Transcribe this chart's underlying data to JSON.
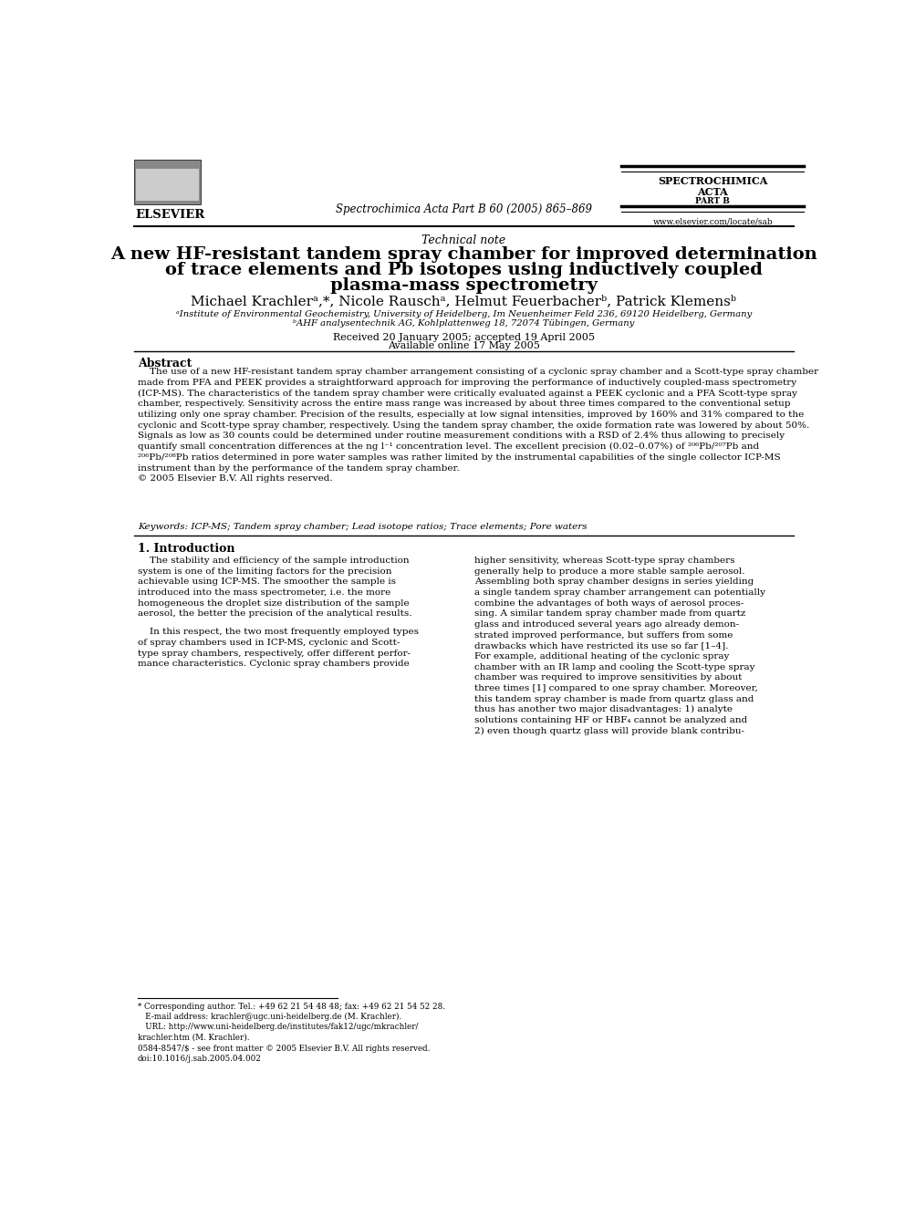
{
  "bg_color": "#ffffff",
  "page_width": 9.92,
  "page_height": 13.23,
  "elsevier_logo_text": "ELSEVIER",
  "journal_header": "Spectrochimica Acta Part B 60 (2005) 865–869",
  "journal_name_line1": "SPECTROCHIMICA",
  "journal_name_line2": "ACTA",
  "journal_name_line3": "PART B",
  "journal_url": "www.elsevier.com/locate/sab",
  "article_type": "Technical note",
  "title_line1": "A new HF-resistant tandem spray chamber for improved determination",
  "title_line2": "of trace elements and Pb isotopes using inductively coupled",
  "title_line3": "plasma-mass spectrometry",
  "authors": "Michael Krachlerᵃ,*, Nicole Rauschᵃ, Helmut Feuerbacherᵇ, Patrick Klemensᵇ",
  "affil_a": "ᵃInstitute of Environmental Geochemistry, University of Heidelberg, Im Neuenheimer Feld 236, 69120 Heidelberg, Germany",
  "affil_b": "ᵇAHF analysentechnik AG, Kohlplattenweg 18, 72074 Tübingen, Germany",
  "received": "Received 20 January 2005; accepted 19 April 2005",
  "available": "Available online 17 May 2005",
  "abstract_title": "Abstract",
  "abstract_text": "    The use of a new HF-resistant tandem spray chamber arrangement consisting of a cyclonic spray chamber and a Scott-type spray chamber\nmade from PFA and PEEK provides a straightforward approach for improving the performance of inductively coupled-mass spectrometry\n(ICP-MS). The characteristics of the tandem spray chamber were critically evaluated against a PEEK cyclonic and a PFA Scott-type spray\nchamber, respectively. Sensitivity across the entire mass range was increased by about three times compared to the conventional setup\nutilizing only one spray chamber. Precision of the results, especially at low signal intensities, improved by 160% and 31% compared to the\ncyclonic and Scott-type spray chamber, respectively. Using the tandem spray chamber, the oxide formation rate was lowered by about 50%.\nSignals as low as 30 counts could be determined under routine measurement conditions with a RSD of 2.4% thus allowing to precisely\nquantify small concentration differences at the ng l⁻¹ concentration level. The excellent precision (0.02–0.07%) of ²⁰⁶Pb/²⁰⁷Pb and\n²⁰⁶Pb/²⁰⁸Pb ratios determined in pore water samples was rather limited by the instrumental capabilities of the single collector ICP-MS\ninstrument than by the performance of the tandem spray chamber.\n© 2005 Elsevier B.V. All rights reserved.",
  "keywords": "Keywords: ICP-MS; Tandem spray chamber; Lead isotope ratios; Trace elements; Pore waters",
  "section1_title": "1. Introduction",
  "intro_left_para1": "    The stability and efficiency of the sample introduction\nsystem is one of the limiting factors for the precision\nachievable using ICP-MS. The smoother the sample is\nintroduced into the mass spectrometer, i.e. the more\nhomogeneous the droplet size distribution of the sample\naerosol, the better the precision of the analytical results.",
  "intro_left_para2": "    In this respect, the two most frequently employed types\nof spray chambers used in ICP-MS, cyclonic and Scott-\ntype spray chambers, respectively, offer different perfor-\nmance characteristics. Cyclonic spray chambers provide",
  "intro_right_para1": "higher sensitivity, whereas Scott-type spray chambers\ngenerally help to produce a more stable sample aerosol.\nAssembling both spray chamber designs in series yielding\na single tandem spray chamber arrangement can potentially\ncombine the advantages of both ways of aerosol proces-\nsing. A similar tandem spray chamber made from quartz\nglass and introduced several years ago already demon-\nstrated improved performance, but suffers from some\ndrawbacks which have restricted its use so far [1–4].\nFor example, additional heating of the cyclonic spray\nchamber with an IR lamp and cooling the Scott-type spray\nchamber was required to improve sensitivities by about\nthree times [1] compared to one spray chamber. Moreover,\nthis tandem spray chamber is made from quartz glass and\nthus has another two major disadvantages: 1) analyte\nsolutions containing HF or HBF₄ cannot be analyzed and\n2) even though quartz glass will provide blank contribu-",
  "footnote_star": "* Corresponding author. Tel.: +49 62 21 54 48 48; fax: +49 62 21 54 52 28.\n   E-mail address: krachler@ugc.uni-heidelberg.de (M. Krachler).\n   URL: http://www.uni-heidelberg.de/institutes/fak12/ugc/mkrachler/\nkrachler.htm (M. Krachler).",
  "footnote_issn": "0584-8547/$ - see front matter © 2005 Elsevier B.V. All rights reserved.\ndoi:10.1016/j.sab.2005.04.002"
}
